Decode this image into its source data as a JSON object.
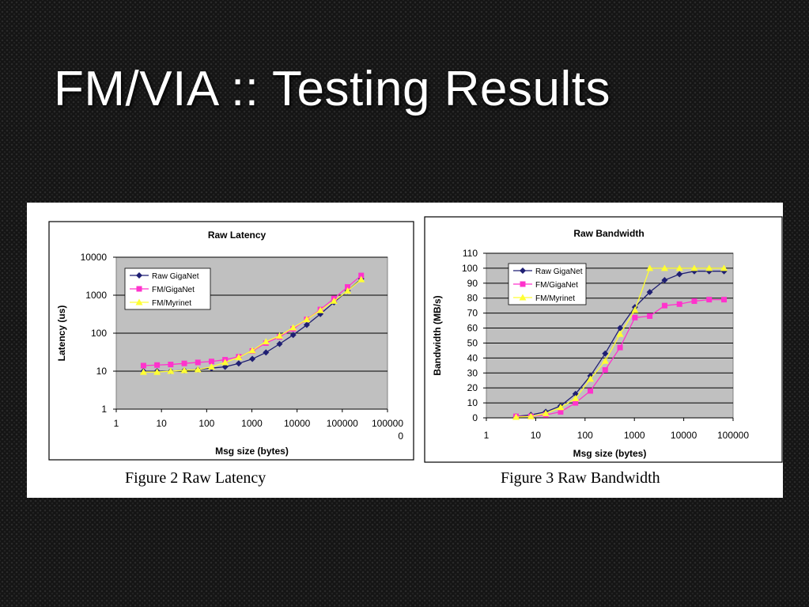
{
  "slide": {
    "title": "FM/VIA :: Testing Results"
  },
  "captions": [
    "Figure 2 Raw Latency",
    "Figure 3 Raw Bandwidth"
  ],
  "colors": {
    "raw_giganet": "#1f1f73",
    "fm_giganet": "#ff33cc",
    "fm_myrinet": "#ffff33",
    "plot_bg": "#c0c0c0"
  },
  "chart_data": [
    {
      "type": "line",
      "title": "Raw Latency",
      "xlabel": "Msg size (bytes)",
      "ylabel": "Latency (us)",
      "xscale": "log",
      "yscale": "log",
      "xlim": [
        1,
        1000000
      ],
      "ylim": [
        1,
        10000
      ],
      "x_tick_labels": [
        "1",
        "10",
        "100",
        "1000",
        "10000",
        "100000",
        "1000000"
      ],
      "x_tick_values": [
        1,
        10,
        100,
        1000,
        10000,
        100000,
        1000000
      ],
      "y_tick_labels": [
        "1",
        "10",
        "100",
        "1000",
        "10000"
      ],
      "y_tick_values": [
        1,
        10,
        100,
        1000,
        10000
      ],
      "grid": "horizontal",
      "legend": "top-left",
      "x": [
        4,
        8,
        16,
        32,
        64,
        128,
        256,
        512,
        1024,
        2048,
        4096,
        8192,
        16384,
        32768,
        65536,
        131072,
        262144
      ],
      "series": [
        {
          "name": "Raw GigaNet",
          "color": "#1f1f73",
          "marker": "diamond",
          "values": [
            10,
            10,
            10,
            10.5,
            11,
            12,
            13,
            16,
            21,
            31,
            52,
            90,
            165,
            320,
            650,
            1300,
            2700
          ]
        },
        {
          "name": "FM/GigaNet",
          "color": "#ff33cc",
          "marker": "square",
          "values": [
            14,
            14.5,
            15,
            16,
            17,
            18,
            20,
            24,
            34,
            55,
            80,
            130,
            230,
            420,
            820,
            1650,
            3300
          ]
        },
        {
          "name": "FM/Myrinet",
          "color": "#ffff33",
          "marker": "triangle",
          "values": [
            9.5,
            9.5,
            10,
            10.5,
            11,
            13,
            17,
            23,
            35,
            60,
            85,
            140,
            230,
            400,
            700,
            1300,
            2600
          ]
        }
      ]
    },
    {
      "type": "line",
      "title": "Raw Bandwidth",
      "xlabel": "Msg size (bytes)",
      "ylabel": "Bandwidth (MB/s)",
      "xscale": "log",
      "xlim": [
        1,
        100000
      ],
      "ylim": [
        0,
        110
      ],
      "x_tick_labels": [
        "1",
        "10",
        "100",
        "1000",
        "10000",
        "100000"
      ],
      "x_tick_values": [
        1,
        10,
        100,
        1000,
        10000,
        100000
      ],
      "y_tick_labels": [
        "0",
        "10",
        "20",
        "30",
        "40",
        "50",
        "60",
        "70",
        "80",
        "90",
        "100",
        "110"
      ],
      "y_tick_values": [
        0,
        10,
        20,
        30,
        40,
        50,
        60,
        70,
        80,
        90,
        100,
        110
      ],
      "grid": "horizontal",
      "legend": "top-left",
      "x": [
        4,
        8,
        16,
        32,
        64,
        128,
        256,
        512,
        1024,
        2048,
        4096,
        8192,
        16384,
        32768,
        65536
      ],
      "series": [
        {
          "name": "Raw GigaNet",
          "color": "#1f1f73",
          "marker": "diamond",
          "values": [
            1,
            2,
            4,
            8,
            16,
            28,
            43,
            60,
            74,
            84,
            92,
            96,
            98,
            98,
            98
          ]
        },
        {
          "name": "FM/GigaNet",
          "color": "#ff33cc",
          "marker": "square",
          "values": [
            1,
            1,
            2,
            4,
            10,
            18,
            32,
            47,
            67,
            68,
            75,
            76,
            78,
            79,
            79
          ]
        },
        {
          "name": "FM/Myrinet",
          "color": "#ffff33",
          "marker": "triangle",
          "values": [
            0.5,
            1,
            3,
            7,
            13,
            26,
            38,
            56,
            72,
            100,
            100,
            100,
            100,
            100,
            100
          ]
        }
      ]
    }
  ]
}
